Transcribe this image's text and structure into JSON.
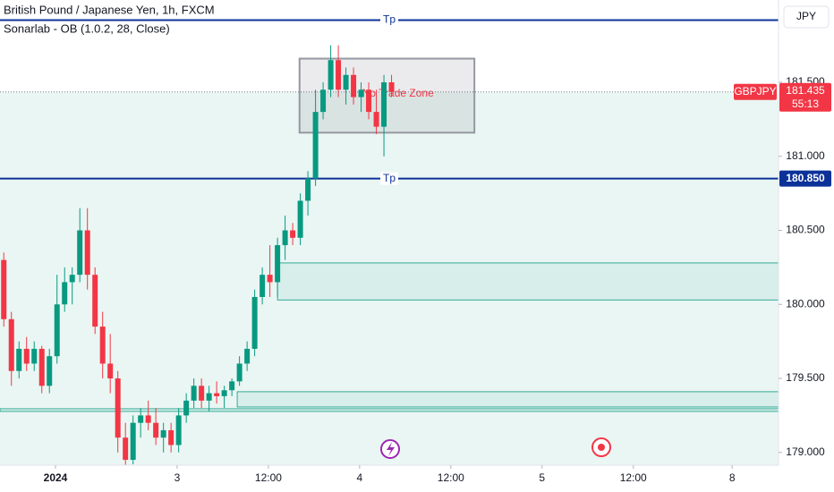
{
  "chart_data": {
    "type": "candlestick",
    "title": "British Pound / Japanese Yen, 1h, FXCM",
    "indicator": "Sonarlab - OB (1.0.2, 28, Close)",
    "currency": "JPY",
    "symbol": "GBPJPY",
    "last_price": 181.435,
    "countdown": "55:13",
    "up_color": "#089981",
    "down_color": "#f23645",
    "x": [
      0,
      1,
      2,
      3,
      4,
      5,
      6,
      7,
      8,
      9,
      10,
      11,
      12,
      13,
      14,
      15,
      16,
      17,
      18,
      19,
      20,
      21,
      22,
      23,
      24,
      25,
      26,
      27,
      28,
      29,
      30,
      31,
      32,
      33,
      34,
      35,
      36,
      37,
      38,
      39,
      40,
      41,
      42,
      43,
      44,
      45,
      46,
      47,
      48,
      49,
      50,
      51
    ],
    "open": [
      180.3,
      179.9,
      179.55,
      179.7,
      179.6,
      179.7,
      179.45,
      179.65,
      180.0,
      180.15,
      180.2,
      180.5,
      180.2,
      179.85,
      179.6,
      179.5,
      179.1,
      178.95,
      179.2,
      179.25,
      179.2,
      179.1,
      179.15,
      179.05,
      179.25,
      179.35,
      179.45,
      179.35,
      179.4,
      179.38,
      179.42,
      179.48,
      179.6,
      179.7,
      180.05,
      180.2,
      180.15,
      180.4,
      180.5,
      180.45,
      180.7,
      180.85,
      181.3,
      181.45,
      181.65,
      181.45,
      181.55,
      181.4,
      181.45,
      181.3,
      181.2,
      181.5
    ],
    "high": [
      180.35,
      179.95,
      179.75,
      179.78,
      179.75,
      179.72,
      179.7,
      180.2,
      180.25,
      180.25,
      180.65,
      180.65,
      180.25,
      179.95,
      179.8,
      179.55,
      179.2,
      179.25,
      179.3,
      179.35,
      179.3,
      179.2,
      179.2,
      179.3,
      179.4,
      179.5,
      179.5,
      179.45,
      179.48,
      179.45,
      179.5,
      179.65,
      179.75,
      180.1,
      180.25,
      180.4,
      180.45,
      180.6,
      180.55,
      180.75,
      180.9,
      181.45,
      181.5,
      181.75,
      181.75,
      181.6,
      181.6,
      181.5,
      181.5,
      181.45,
      181.55,
      181.55
    ],
    "low": [
      179.85,
      179.45,
      179.5,
      179.55,
      179.55,
      179.4,
      179.4,
      179.6,
      179.95,
      180.0,
      180.15,
      180.1,
      179.8,
      179.5,
      179.4,
      179.0,
      178.9,
      178.92,
      179.1,
      179.15,
      179.05,
      179.0,
      179.0,
      179.0,
      179.2,
      179.3,
      179.3,
      179.28,
      179.33,
      179.3,
      179.38,
      179.45,
      179.55,
      179.65,
      180.0,
      180.05,
      180.05,
      180.3,
      180.4,
      180.4,
      180.6,
      180.8,
      181.25,
      181.4,
      181.4,
      181.35,
      181.35,
      181.3,
      181.25,
      181.15,
      181.0,
      181.4
    ],
    "close": [
      179.9,
      179.55,
      179.7,
      179.6,
      179.7,
      179.45,
      179.65,
      180.0,
      180.15,
      180.2,
      180.5,
      180.2,
      179.85,
      179.6,
      179.5,
      179.1,
      178.95,
      179.2,
      179.25,
      179.2,
      179.1,
      179.15,
      179.05,
      179.25,
      179.35,
      179.45,
      179.35,
      179.4,
      179.38,
      179.42,
      179.48,
      179.6,
      179.7,
      180.05,
      180.2,
      180.15,
      180.4,
      180.5,
      180.45,
      180.7,
      180.85,
      181.3,
      181.45,
      181.65,
      181.45,
      181.55,
      181.4,
      181.45,
      181.3,
      181.2,
      181.5,
      181.435
    ],
    "levels": [
      {
        "name": "Tp",
        "value": 181.92,
        "color": "#0c3299"
      },
      {
        "name": "Tp",
        "value": 180.85,
        "label": "180.850",
        "color": "#0c3299"
      }
    ],
    "zones": [
      {
        "top": 180.28,
        "bottom": 180.03,
        "x_start": 36
      },
      {
        "top": 179.41,
        "bottom": 179.307,
        "x_start": 30.7
      },
      {
        "top": 179.295,
        "bottom": 179.277,
        "x_start": -0.5
      }
    ],
    "box": {
      "label": "No Trade Zone",
      "top": 181.66,
      "bottom": 181.16,
      "x_start": 38.9,
      "x_end": 61.9
    },
    "xlim": [
      -0.5,
      101.9
    ],
    "xticks": [
      {
        "value": 6.8,
        "label": "2024"
      },
      {
        "value": 22.8,
        "label": "3"
      },
      {
        "value": 34.8,
        "label": "12:00"
      },
      {
        "value": 46.8,
        "label": "4"
      },
      {
        "value": 58.8,
        "label": "12:00"
      },
      {
        "value": 70.8,
        "label": "5"
      },
      {
        "value": 82.8,
        "label": "12:00"
      },
      {
        "value": 95.8,
        "label": "8"
      }
    ],
    "ylim": [
      178.914,
      182.056
    ],
    "yticks": [
      {
        "value": 179,
        "label": "179.000"
      },
      {
        "value": 179.5,
        "label": "179.500"
      },
      {
        "value": 180,
        "label": "180.000"
      },
      {
        "value": 180.5,
        "label": "180.500"
      },
      {
        "value": 181,
        "label": "181.000"
      },
      {
        "value": 181.5,
        "label": "181.500"
      }
    ]
  }
}
